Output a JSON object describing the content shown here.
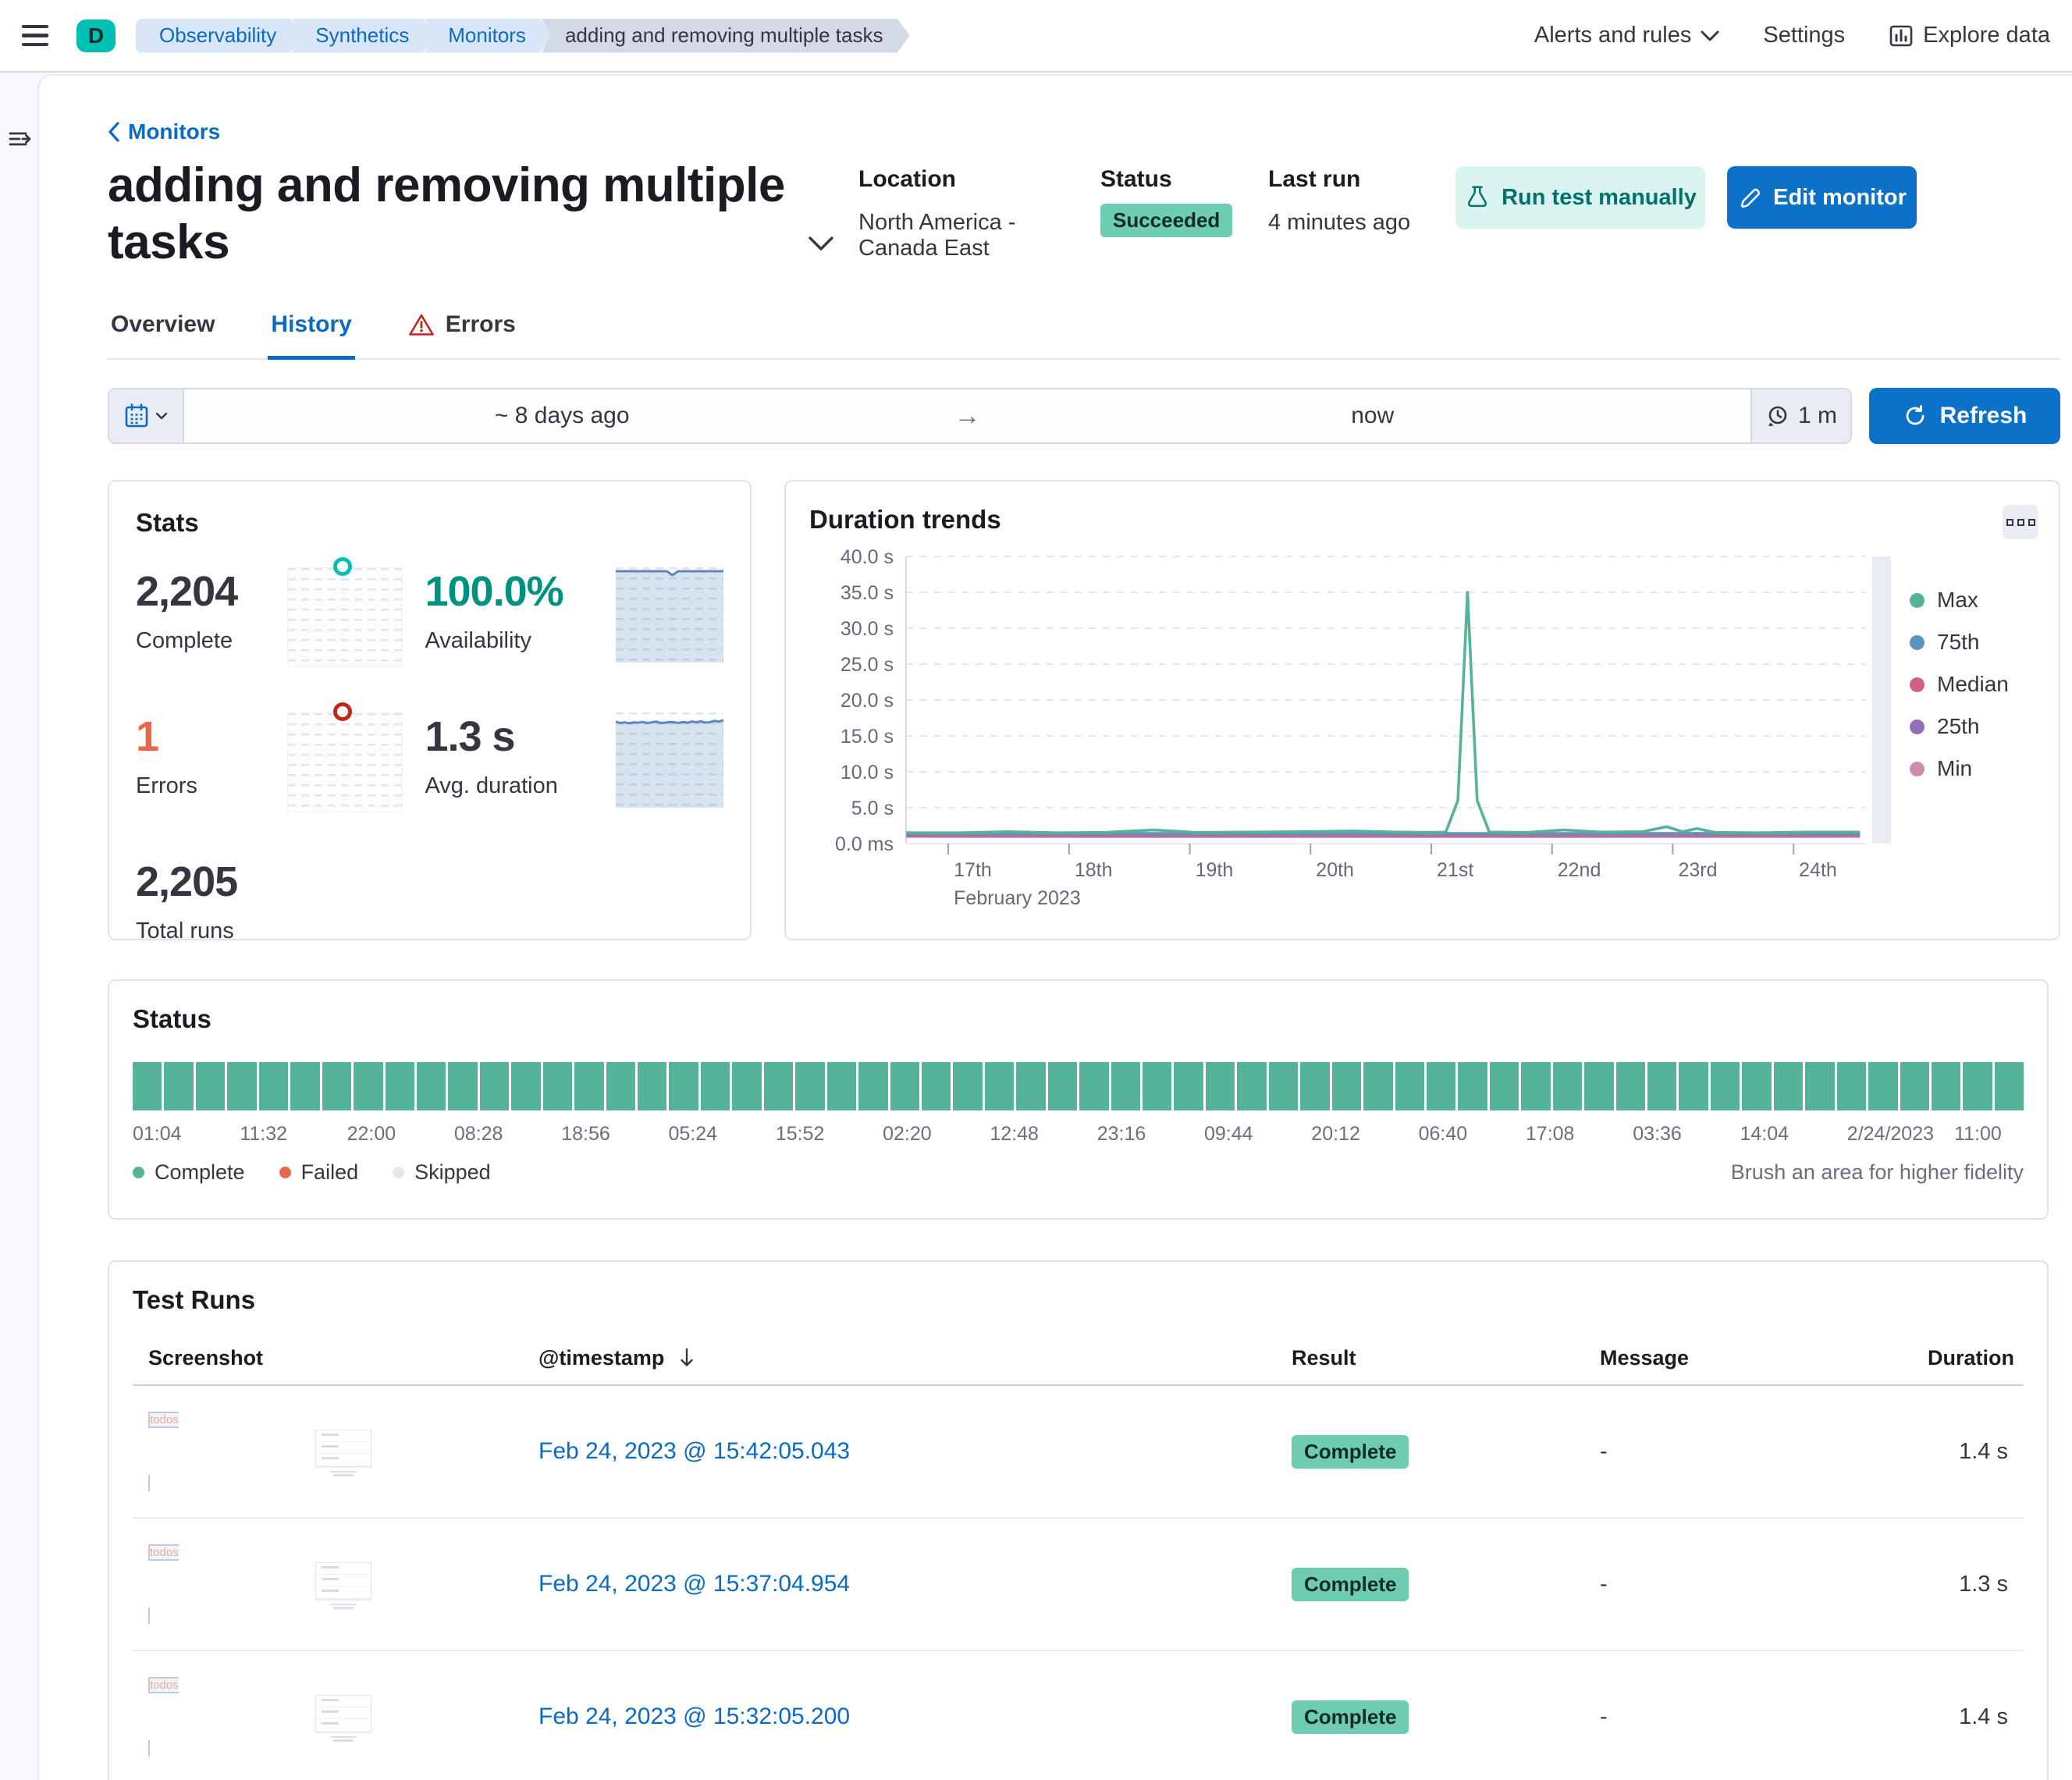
{
  "colors": {
    "accent": "#0b71c9",
    "link": "#0b6bc4",
    "success_badge": "#6dccb1",
    "block_green": "#54b399",
    "error_orange": "#e7664c",
    "teal": "#00bfb3",
    "availability_text": "#009280"
  },
  "header": {
    "space_initial": "D",
    "breadcrumbs": [
      {
        "label": "Observability",
        "current": false
      },
      {
        "label": "Synthetics",
        "current": false
      },
      {
        "label": "Monitors",
        "current": false
      },
      {
        "label": "adding and removing multiple tasks",
        "current": true
      }
    ],
    "alerts_menu": "Alerts and rules",
    "settings": "Settings",
    "explore": "Explore data"
  },
  "monitor": {
    "back_link": "Monitors",
    "title": "adding and removing multiple tasks",
    "location_label": "Location",
    "location_value": "North America - Canada East",
    "status_label": "Status",
    "status_value": "Succeeded",
    "last_run_label": "Last run",
    "last_run_value": "4 minutes ago",
    "run_test_button": "Run test manually",
    "edit_button": "Edit monitor"
  },
  "tabs": [
    {
      "label": "Overview",
      "active": false,
      "warning": false
    },
    {
      "label": "History",
      "active": true,
      "warning": false
    },
    {
      "label": "Errors",
      "active": false,
      "warning": true
    }
  ],
  "daterange": {
    "start": "~ 8 days ago",
    "end": "now",
    "interval": "1 m",
    "refresh_label": "Refresh"
  },
  "stats": {
    "title": "Stats",
    "complete": {
      "value": "2,204",
      "label": "Complete"
    },
    "availability": {
      "value": "100.0%",
      "label": "Availability"
    },
    "errors": {
      "value": "1",
      "label": "Errors"
    },
    "avg_duration": {
      "value": "1.3 s",
      "label": "Avg. duration"
    },
    "total": {
      "value": "2,205",
      "label": "Total runs"
    },
    "availability_spark": [
      1,
      1,
      1,
      1,
      1,
      1,
      1,
      1,
      1,
      1,
      0.955,
      1,
      1,
      1,
      1,
      1,
      1,
      1,
      1,
      1
    ],
    "duration_spark": [
      0.74,
      0.7,
      0.72,
      0.69,
      0.72,
      0.71,
      0.73,
      0.7,
      0.72,
      0.74,
      0.7,
      0.71,
      0.73,
      0.72,
      0.7,
      0.73,
      0.71,
      0.74,
      0.72,
      0.75,
      0.71,
      0.73,
      0.76,
      0.74,
      0.78
    ]
  },
  "chart_data": {
    "type": "line",
    "title": "Duration trends",
    "x_domain": [
      16.65,
      24.6
    ],
    "y_max": 40,
    "grid": "dashed",
    "legend_position": "right",
    "x_axis_sublabel": "February 2023",
    "y_ticks": [
      {
        "v": 40,
        "label": "40.0 s"
      },
      {
        "v": 35,
        "label": "35.0 s"
      },
      {
        "v": 30,
        "label": "30.0 s"
      },
      {
        "v": 25,
        "label": "25.0 s"
      },
      {
        "v": 20,
        "label": "20.0 s"
      },
      {
        "v": 15,
        "label": "15.0 s"
      },
      {
        "v": 10,
        "label": "10.0 s"
      },
      {
        "v": 5,
        "label": "5.0 s"
      },
      {
        "v": 0,
        "label": "0.0 ms"
      }
    ],
    "x_ticks": [
      {
        "d": 17,
        "label": "17th"
      },
      {
        "d": 18,
        "label": "18th"
      },
      {
        "d": 19,
        "label": "19th"
      },
      {
        "d": 20,
        "label": "20th"
      },
      {
        "d": 21,
        "label": "21st"
      },
      {
        "d": 22,
        "label": "22nd"
      },
      {
        "d": 23,
        "label": "23rd"
      },
      {
        "d": 24,
        "label": "24th"
      }
    ],
    "series": [
      {
        "name": "Max",
        "color": "#54b399",
        "points": [
          [
            16.65,
            1.5
          ],
          [
            17.1,
            1.5
          ],
          [
            17.5,
            1.65
          ],
          [
            17.9,
            1.5
          ],
          [
            18.3,
            1.55
          ],
          [
            18.7,
            1.9
          ],
          [
            19.05,
            1.55
          ],
          [
            19.5,
            1.6
          ],
          [
            19.95,
            1.65
          ],
          [
            20.35,
            1.75
          ],
          [
            20.7,
            1.6
          ],
          [
            21.0,
            1.55
          ],
          [
            21.12,
            1.6
          ],
          [
            21.22,
            6
          ],
          [
            21.3,
            35
          ],
          [
            21.38,
            6
          ],
          [
            21.48,
            1.6
          ],
          [
            21.8,
            1.55
          ],
          [
            22.1,
            1.9
          ],
          [
            22.4,
            1.6
          ],
          [
            22.75,
            1.65
          ],
          [
            22.95,
            2.35
          ],
          [
            23.08,
            1.65
          ],
          [
            23.2,
            2.1
          ],
          [
            23.35,
            1.55
          ],
          [
            23.7,
            1.5
          ],
          [
            24.1,
            1.6
          ],
          [
            24.55,
            1.6
          ]
        ]
      },
      {
        "name": "75th",
        "color": "#6092c0",
        "points": [
          [
            16.65,
            1.42
          ],
          [
            20.5,
            1.4
          ],
          [
            24.55,
            1.42
          ]
        ]
      },
      {
        "name": "Median",
        "color": "#d36086",
        "points": [
          [
            16.65,
            1.27
          ],
          [
            20.5,
            1.25
          ],
          [
            24.55,
            1.27
          ]
        ]
      },
      {
        "name": "25th",
        "color": "#9170b8",
        "points": [
          [
            16.65,
            1.13
          ],
          [
            20.5,
            1.12
          ],
          [
            24.55,
            1.13
          ]
        ]
      },
      {
        "name": "Min",
        "color": "#ca8eae",
        "points": [
          [
            16.65,
            0.98
          ],
          [
            20.5,
            0.97
          ],
          [
            24.55,
            0.98
          ]
        ]
      }
    ]
  },
  "status_panel": {
    "title": "Status",
    "block_count": 60,
    "time_labels": [
      "01:04",
      "11:32",
      "22:00",
      "08:28",
      "18:56",
      "05:24",
      "15:52",
      "02:20",
      "12:48",
      "23:16",
      "09:44",
      "20:12",
      "06:40",
      "17:08",
      "03:36",
      "14:04",
      "2/24/2023",
      "11:00"
    ],
    "legend": [
      {
        "label": "Complete",
        "color": "#54b399"
      },
      {
        "label": "Failed",
        "color": "#e7664c"
      },
      {
        "label": "Skipped",
        "color": "#e3e8f0"
      }
    ],
    "hint": "Brush an area for higher fidelity"
  },
  "test_runs": {
    "title": "Test Runs",
    "columns": {
      "screenshot": "Screenshot",
      "timestamp": "@timestamp",
      "result": "Result",
      "message": "Message",
      "duration": "Duration"
    },
    "thumb_title": "todos",
    "rows": [
      {
        "timestamp": "Feb 24, 2023 @ 15:42:05.043",
        "result": "Complete",
        "message": "-",
        "duration": "1.4 s"
      },
      {
        "timestamp": "Feb 24, 2023 @ 15:37:04.954",
        "result": "Complete",
        "message": "-",
        "duration": "1.3 s"
      },
      {
        "timestamp": "Feb 24, 2023 @ 15:32:05.200",
        "result": "Complete",
        "message": "-",
        "duration": "1.4 s"
      }
    ]
  }
}
